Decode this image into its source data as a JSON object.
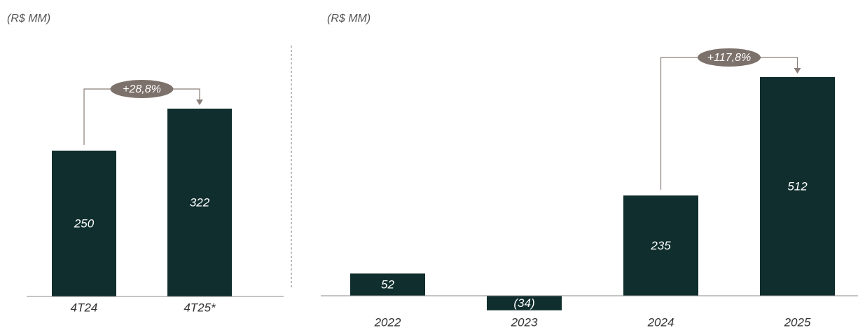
{
  "chart_data": [
    {
      "type": "bar",
      "subtitle": "(R$ MM)",
      "categories": [
        "4T24",
        "4T25*"
      ],
      "values": [
        250,
        322
      ],
      "color": "#0f2e2d",
      "annotation": "+28,8%"
    },
    {
      "type": "bar",
      "subtitle": "(R$ MM)",
      "categories": [
        "2022",
        "2023",
        "2024",
        "2025"
      ],
      "values": [
        52,
        -34,
        235,
        512
      ],
      "value_labels": [
        "52",
        "(34)",
        "235",
        "512"
      ],
      "color": "#0f2e2d",
      "annotation": "+117,8%"
    }
  ]
}
